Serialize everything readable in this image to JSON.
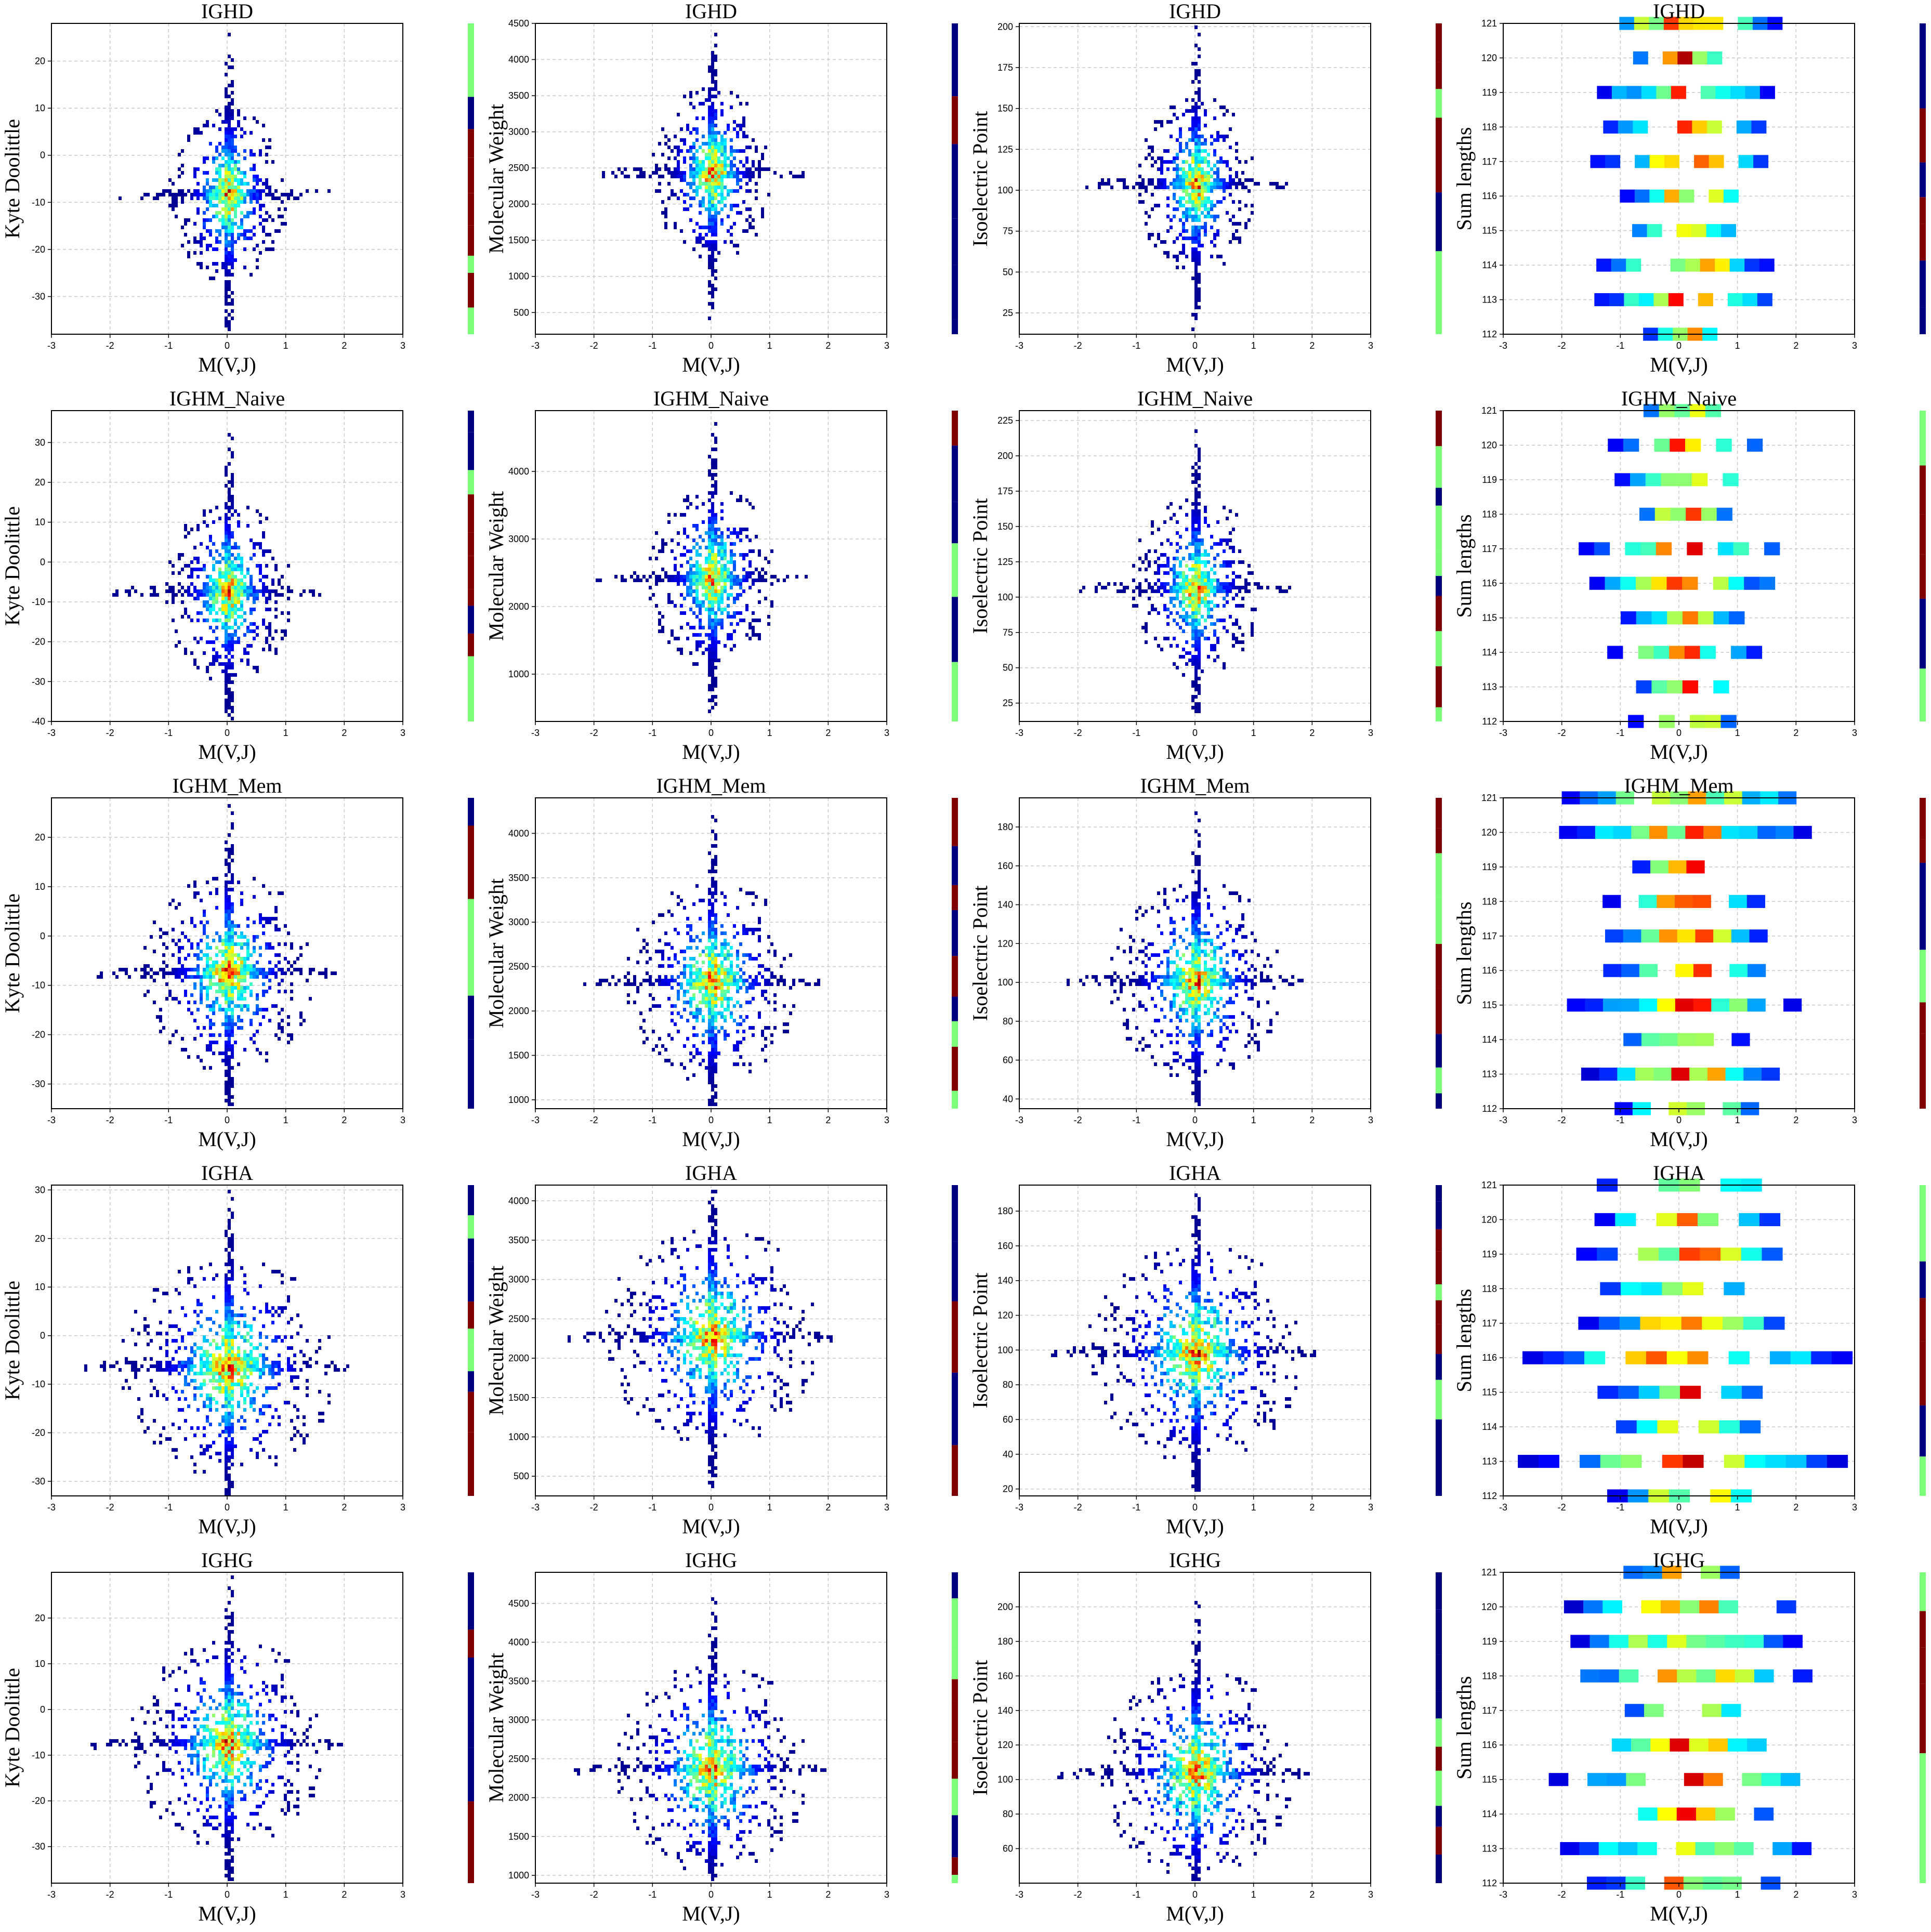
{
  "figure": {
    "rows": 5,
    "cols": 4,
    "colormap": "jet"
  },
  "colorbar_colors": {
    "low": "#00007f",
    "mid": "#7cff79",
    "high": "#7f0000"
  },
  "x_axis": {
    "label": "M(V,J)",
    "range": [
      -3,
      3
    ],
    "ticks": [
      -3,
      -2,
      -1,
      0,
      1,
      2,
      3
    ]
  },
  "columns": [
    {
      "ylabel": "Kyte Doolittle",
      "kind": "kd"
    },
    {
      "ylabel": "Molecular Weight",
      "kind": "mw"
    },
    {
      "ylabel": "Isoelectric Point",
      "kind": "ip"
    },
    {
      "ylabel": "Sum lengths",
      "kind": "sum"
    }
  ],
  "rows": [
    {
      "title": "IGHD",
      "spread": 0.55
    },
    {
      "title": "IGHM_Naive",
      "spread": 0.6
    },
    {
      "title": "IGHM_Mem",
      "spread": 0.8
    },
    {
      "title": "IGHA",
      "spread": 1.0
    },
    {
      "title": "IGHG",
      "spread": 0.9
    }
  ],
  "chart_data": [
    {
      "type": "heatmap",
      "title": "IGHD",
      "xlabel": "M(V,J)",
      "ylabel": "Kyte Doolittle",
      "xlim": [
        -3,
        3
      ],
      "ylim": [
        -38,
        28
      ],
      "yticks": [
        -30,
        -20,
        -10,
        0,
        10,
        20
      ],
      "center": [
        0,
        -8
      ],
      "peak_density_cell": [
        0,
        -8
      ]
    },
    {
      "type": "heatmap",
      "title": "IGHD",
      "xlabel": "M(V,J)",
      "ylabel": "Molecular Weight",
      "xlim": [
        -3,
        3
      ],
      "ylim": [
        200,
        4500
      ],
      "yticks": [
        500,
        1000,
        1500,
        2000,
        2500,
        3000,
        3500,
        4000,
        4500
      ],
      "center": [
        0,
        2450
      ]
    },
    {
      "type": "heatmap",
      "title": "IGHD",
      "xlabel": "M(V,J)",
      "ylabel": "Isoelectric Point",
      "xlim": [
        -3,
        3
      ],
      "ylim": [
        12,
        202
      ],
      "yticks": [
        25,
        50,
        75,
        100,
        125,
        150,
        175,
        200
      ],
      "center": [
        0,
        105
      ]
    },
    {
      "type": "heatmap",
      "title": "IGHD",
      "xlabel": "M(V,J)",
      "ylabel": "Sum lengths",
      "xlim": [
        -3,
        3
      ],
      "ylim": [
        112,
        121
      ],
      "yticks": [
        112,
        113,
        114,
        115,
        116,
        117,
        118,
        119,
        120,
        121
      ],
      "center": [
        0,
        116.5
      ]
    },
    {
      "type": "heatmap",
      "title": "IGHM_Naive",
      "xlabel": "M(V,J)",
      "ylabel": "Kyte Doolittle",
      "xlim": [
        -3,
        3
      ],
      "ylim": [
        -40,
        38
      ],
      "yticks": [
        -40,
        -30,
        -20,
        -10,
        0,
        10,
        20,
        30
      ],
      "center": [
        0,
        -7
      ]
    },
    {
      "type": "heatmap",
      "title": "IGHM_Naive",
      "xlabel": "M(V,J)",
      "ylabel": "Molecular Weight",
      "xlim": [
        -3,
        3
      ],
      "ylim": [
        300,
        4900
      ],
      "yticks": [
        1000,
        2000,
        3000,
        4000
      ],
      "center": [
        0,
        2450
      ]
    },
    {
      "type": "heatmap",
      "title": "IGHM_Naive",
      "xlabel": "M(V,J)",
      "ylabel": "Isoelectric Point",
      "xlim": [
        -3,
        3
      ],
      "ylim": [
        12,
        232
      ],
      "yticks": [
        25,
        50,
        75,
        100,
        125,
        150,
        175,
        200,
        225
      ],
      "center": [
        0,
        108
      ]
    },
    {
      "type": "heatmap",
      "title": "IGHM_Naive",
      "xlabel": "M(V,J)",
      "ylabel": "Sum lengths",
      "xlim": [
        -3,
        3
      ],
      "ylim": [
        112,
        121
      ],
      "yticks": [
        112,
        113,
        114,
        115,
        116,
        117,
        118,
        119,
        120,
        121
      ],
      "center": [
        0,
        116.5
      ]
    },
    {
      "type": "heatmap",
      "title": "IGHM_Mem",
      "xlabel": "M(V,J)",
      "ylabel": "Kyte Doolittle",
      "xlim": [
        -3,
        3
      ],
      "ylim": [
        -35,
        28
      ],
      "yticks": [
        -30,
        -20,
        -10,
        0,
        10,
        20
      ],
      "center": [
        0,
        -7
      ]
    },
    {
      "type": "heatmap",
      "title": "IGHM_Mem",
      "xlabel": "M(V,J)",
      "ylabel": "Molecular Weight",
      "xlim": [
        -3,
        3
      ],
      "ylim": [
        900,
        4400
      ],
      "yticks": [
        1000,
        1500,
        2000,
        2500,
        3000,
        3500,
        4000
      ],
      "center": [
        0,
        2350
      ]
    },
    {
      "type": "heatmap",
      "title": "IGHM_Mem",
      "xlabel": "M(V,J)",
      "ylabel": "Isoelectric Point",
      "xlim": [
        -3,
        3
      ],
      "ylim": [
        35,
        195
      ],
      "yticks": [
        40,
        60,
        80,
        100,
        120,
        140,
        160,
        180
      ],
      "center": [
        0,
        102
      ]
    },
    {
      "type": "heatmap",
      "title": "IGHM_Mem",
      "xlabel": "M(V,J)",
      "ylabel": "Sum lengths",
      "xlim": [
        -3,
        3
      ],
      "ylim": [
        112,
        121
      ],
      "yticks": [
        112,
        113,
        114,
        115,
        116,
        117,
        118,
        119,
        120,
        121
      ],
      "center": [
        0,
        116.5
      ]
    },
    {
      "type": "heatmap",
      "title": "IGHA",
      "xlabel": "M(V,J)",
      "ylabel": "Kyte Doolittle",
      "xlim": [
        -3,
        3
      ],
      "ylim": [
        -33,
        31
      ],
      "yticks": [
        -30,
        -20,
        -10,
        0,
        10,
        20,
        30
      ],
      "center": [
        0,
        -6
      ]
    },
    {
      "type": "heatmap",
      "title": "IGHA",
      "xlabel": "M(V,J)",
      "ylabel": "Molecular Weight",
      "xlim": [
        -3,
        3
      ],
      "ylim": [
        250,
        4200
      ],
      "yticks": [
        500,
        1000,
        1500,
        2000,
        2500,
        3000,
        3500,
        4000
      ],
      "center": [
        0,
        2300
      ]
    },
    {
      "type": "heatmap",
      "title": "IGHA",
      "xlabel": "M(V,J)",
      "ylabel": "Isoelectric Point",
      "xlim": [
        -3,
        3
      ],
      "ylim": [
        16,
        195
      ],
      "yticks": [
        20,
        40,
        60,
        80,
        100,
        120,
        140,
        160,
        180
      ],
      "center": [
        0,
        100
      ]
    },
    {
      "type": "heatmap",
      "title": "IGHA",
      "xlabel": "M(V,J)",
      "ylabel": "Sum lengths",
      "xlim": [
        -3,
        3
      ],
      "ylim": [
        112,
        121
      ],
      "yticks": [
        112,
        113,
        114,
        115,
        116,
        117,
        118,
        119,
        120,
        121
      ],
      "center": [
        0,
        116.5
      ]
    },
    {
      "type": "heatmap",
      "title": "IGHG",
      "xlabel": "M(V,J)",
      "ylabel": "Kyte Doolittle",
      "xlim": [
        -3,
        3
      ],
      "ylim": [
        -38,
        30
      ],
      "yticks": [
        -30,
        -20,
        -10,
        0,
        10,
        20
      ],
      "center": [
        0,
        -7
      ]
    },
    {
      "type": "heatmap",
      "title": "IGHG",
      "xlabel": "M(V,J)",
      "ylabel": "Molecular Weight",
      "xlim": [
        -3,
        3
      ],
      "ylim": [
        900,
        4900
      ],
      "yticks": [
        1000,
        1500,
        2000,
        2500,
        3000,
        3500,
        4000,
        4500
      ],
      "center": [
        0,
        2400
      ]
    },
    {
      "type": "heatmap",
      "title": "IGHG",
      "xlabel": "M(V,J)",
      "ylabel": "Isoelectric Point",
      "xlim": [
        -3,
        3
      ],
      "ylim": [
        40,
        220
      ],
      "yticks": [
        60,
        80,
        100,
        120,
        140,
        160,
        180,
        200
      ],
      "center": [
        0,
        105
      ]
    },
    {
      "type": "heatmap",
      "title": "IGHG",
      "xlabel": "M(V,J)",
      "ylabel": "Sum lengths",
      "xlim": [
        -3,
        3
      ],
      "ylim": [
        112,
        121
      ],
      "yticks": [
        112,
        113,
        114,
        115,
        116,
        117,
        118,
        119,
        120,
        121
      ],
      "center": [
        0,
        116.5
      ]
    }
  ]
}
